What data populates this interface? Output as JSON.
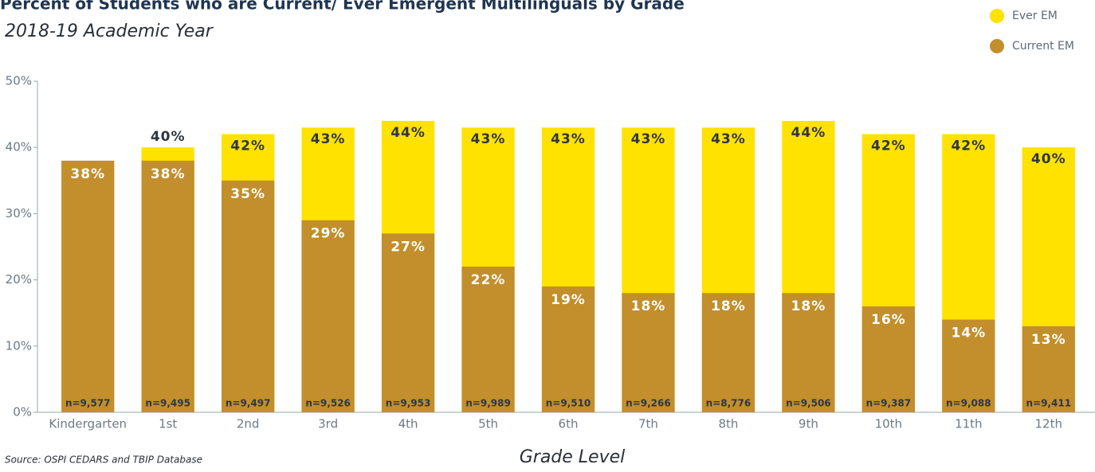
{
  "chart_data": {
    "type": "overlap-bar",
    "title": "Percent of Students who are Current/ Ever Emergent Multilinguals by Grade",
    "subtitle": "2018-19 Academic Year",
    "x_label": "Grade Level",
    "source": "Source: OSPI CEDARS and TBIP Database",
    "categories": [
      "Kindergarten",
      "1st",
      "2nd",
      "3rd",
      "4th",
      "5th",
      "6th",
      "7th",
      "8th",
      "9th",
      "10th",
      "11th",
      "12th"
    ],
    "n_labels": [
      "n=9,577",
      "n=9,495",
      "n=9,497",
      "n=9,526",
      "n=9,953",
      "n=9,989",
      "n=9,510",
      "n=9,266",
      "n=8,776",
      "n=9,506",
      "n=9,387",
      "n=9,088",
      "n=9,411"
    ],
    "series": [
      {
        "name": "Ever EM",
        "color": "#FFE200",
        "values": [
          null,
          40,
          42,
          43,
          44,
          43,
          43,
          43,
          43,
          44,
          42,
          42,
          40
        ],
        "value_labels": [
          null,
          "40%",
          "42%",
          "43%",
          "44%",
          "43%",
          "43%",
          "43%",
          "43%",
          "44%",
          "42%",
          "42%",
          "40%"
        ]
      },
      {
        "name": "Current EM",
        "color": "#C28F2C",
        "values": [
          38,
          38,
          35,
          29,
          27,
          22,
          19,
          18,
          18,
          18,
          16,
          14,
          13
        ],
        "value_labels": [
          "38%",
          "38%",
          "35%",
          "29%",
          "27%",
          "22%",
          "19%",
          "18%",
          "18%",
          "18%",
          "16%",
          "14%",
          "13%"
        ]
      }
    ],
    "ylim": [
      0,
      50
    ],
    "yticks": [
      {
        "value": 0,
        "label": "0%"
      },
      {
        "value": 10,
        "label": "10%"
      },
      {
        "value": 20,
        "label": "20%"
      },
      {
        "value": 30,
        "label": "30%"
      },
      {
        "value": 40,
        "label": "40%"
      },
      {
        "value": 50,
        "label": "50%"
      }
    ],
    "legend": "top-right"
  }
}
